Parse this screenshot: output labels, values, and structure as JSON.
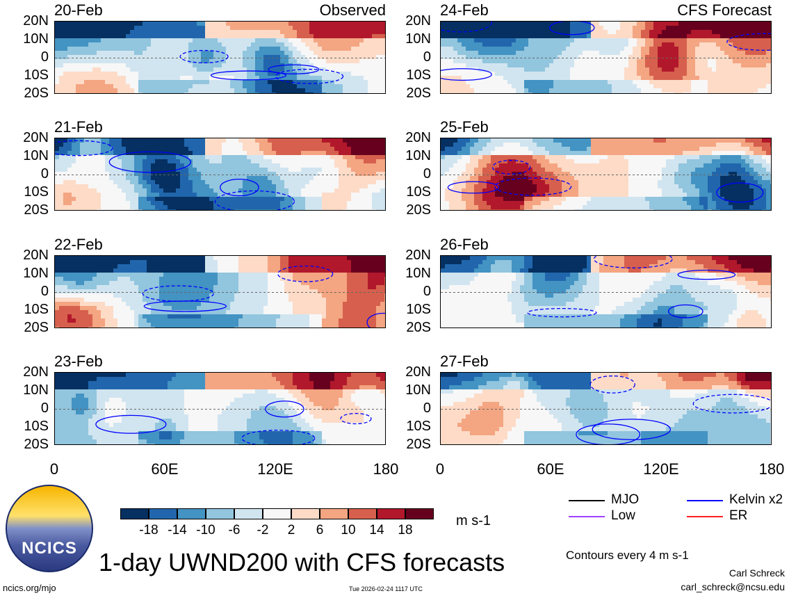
{
  "chart_data": {
    "type": "heatmap",
    "title": "1-day UWND200 with CFS forecasts",
    "variable": "UWND200",
    "units": "m s-1",
    "colorbar": {
      "ticks": [
        "-18",
        "-14",
        "-10",
        "-6",
        "-2",
        "2",
        "6",
        "10",
        "14",
        "18"
      ],
      "colors": [
        "#053061",
        "#2166ac",
        "#4393c3",
        "#92c5de",
        "#d1e5f0",
        "#f7f7f7",
        "#fddbc7",
        "#f4a582",
        "#d6604d",
        "#b2182b",
        "#67001f"
      ]
    },
    "lat_ticks": [
      "20N",
      "10N",
      "0",
      "10S",
      "20S"
    ],
    "lon_ticks": [
      "0",
      "60E",
      "120E",
      "180"
    ],
    "xlim": [
      0,
      180
    ],
    "ylim": [
      -20,
      20
    ],
    "panels": [
      {
        "date": "20-Feb",
        "label": "Observed"
      },
      {
        "date": "21-Feb",
        "label": ""
      },
      {
        "date": "22-Feb",
        "label": ""
      },
      {
        "date": "23-Feb",
        "label": ""
      },
      {
        "date": "24-Feb",
        "label": "CFS Forecast"
      },
      {
        "date": "25-Feb",
        "label": ""
      },
      {
        "date": "26-Feb",
        "label": ""
      },
      {
        "date": "27-Feb",
        "label": ""
      }
    ],
    "legend": [
      {
        "name": "MJO",
        "color": "#000000"
      },
      {
        "name": "Kelvin x2",
        "color": "#0000ff"
      },
      {
        "name": "Low",
        "color": "#a040ff"
      },
      {
        "name": "ER",
        "color": "#ff2020"
      }
    ],
    "contour_note": "Contours every 4 m s-1"
  },
  "footer": {
    "logo_text": "NCICS",
    "url": "ncics.org/mjo",
    "timestamp": "Tue 2026-02-24 1117 UTC",
    "author": "Carl Schreck",
    "email": "carl_schreck@ncsu.edu"
  }
}
